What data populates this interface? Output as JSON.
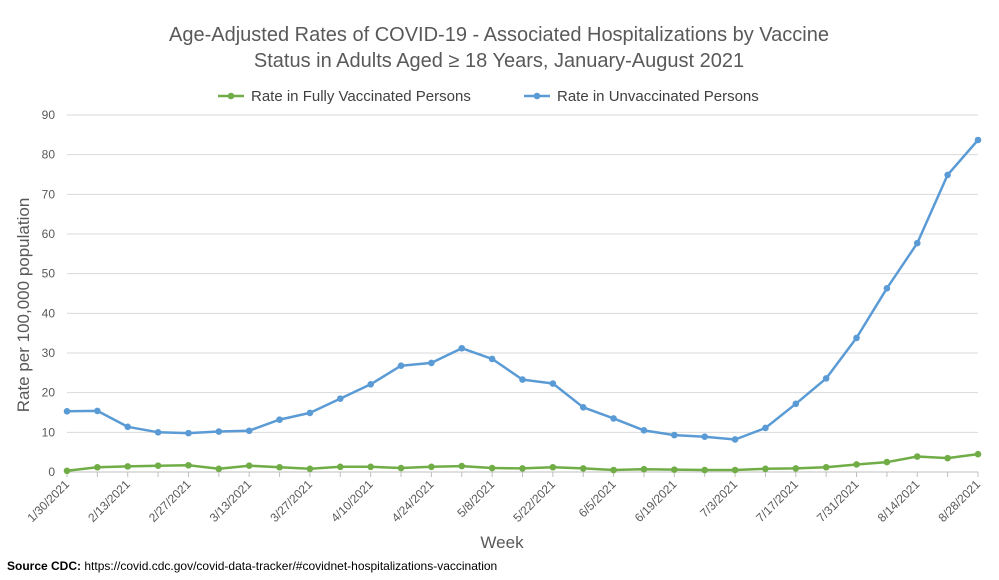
{
  "chart_data": {
    "type": "line",
    "title_lines": [
      "Age-Adjusted Rates of COVID-19 - Associated Hospitalizations by Vaccine",
      "Status in Adults Aged ≥ 18 Years, January-August 2021"
    ],
    "xlabel": "Week",
    "ylabel": "Rate per 100,000 population",
    "ylim": [
      0,
      90
    ],
    "yticks": [
      0,
      10,
      20,
      30,
      40,
      50,
      60,
      70,
      80,
      90
    ],
    "x": [
      "1/30/2021",
      "2/6/2021",
      "2/13/2021",
      "2/20/2021",
      "2/27/2021",
      "3/6/2021",
      "3/13/2021",
      "3/20/2021",
      "3/27/2021",
      "4/3/2021",
      "4/10/2021",
      "4/17/2021",
      "4/24/2021",
      "5/1/2021",
      "5/8/2021",
      "5/15/2021",
      "5/22/2021",
      "5/29/2021",
      "6/5/2021",
      "6/12/2021",
      "6/19/2021",
      "6/26/2021",
      "7/3/2021",
      "7/10/2021",
      "7/17/2021",
      "7/24/2021",
      "7/31/2021",
      "8/7/2021",
      "8/14/2021",
      "8/21/2021",
      "8/28/2021"
    ],
    "x_tick_labels": [
      "1/30/2021",
      "2/13/2021",
      "2/27/2021",
      "3/13/2021",
      "3/27/2021",
      "4/10/2021",
      "4/24/2021",
      "5/8/2021",
      "5/22/2021",
      "6/5/2021",
      "6/19/2021",
      "7/3/2021",
      "7/17/2021",
      "7/31/2021",
      "8/14/2021",
      "8/28/2021"
    ],
    "grid": true,
    "legend_position": "top-center",
    "series": [
      {
        "name": "Rate in Fully Vaccinated Persons",
        "color": "#70ad47",
        "values": [
          0.3,
          1.2,
          1.4,
          1.6,
          1.7,
          0.8,
          1.6,
          1.2,
          0.8,
          1.3,
          1.3,
          1.0,
          1.3,
          1.5,
          1.0,
          0.9,
          1.2,
          0.9,
          0.5,
          0.7,
          0.6,
          0.5,
          0.5,
          0.8,
          0.9,
          1.2,
          1.9,
          2.5,
          3.9,
          3.5,
          4.5
        ]
      },
      {
        "name": "Rate in Unvaccinated Persons",
        "color": "#5b9bd5",
        "values": [
          15.3,
          15.4,
          11.4,
          10.0,
          9.8,
          10.2,
          10.4,
          13.2,
          14.9,
          18.5,
          22.1,
          26.8,
          27.5,
          31.2,
          28.5,
          23.3,
          22.3,
          16.3,
          13.5,
          10.5,
          9.3,
          8.9,
          8.2,
          11.1,
          17.2,
          23.6,
          33.8,
          46.3,
          57.7,
          74.9,
          83.7
        ]
      }
    ]
  },
  "source": {
    "label": "Source CDC:",
    "url": "https://covid.cdc.gov/covid-data-tracker/#covidnet-hospitalizations-vaccination"
  }
}
